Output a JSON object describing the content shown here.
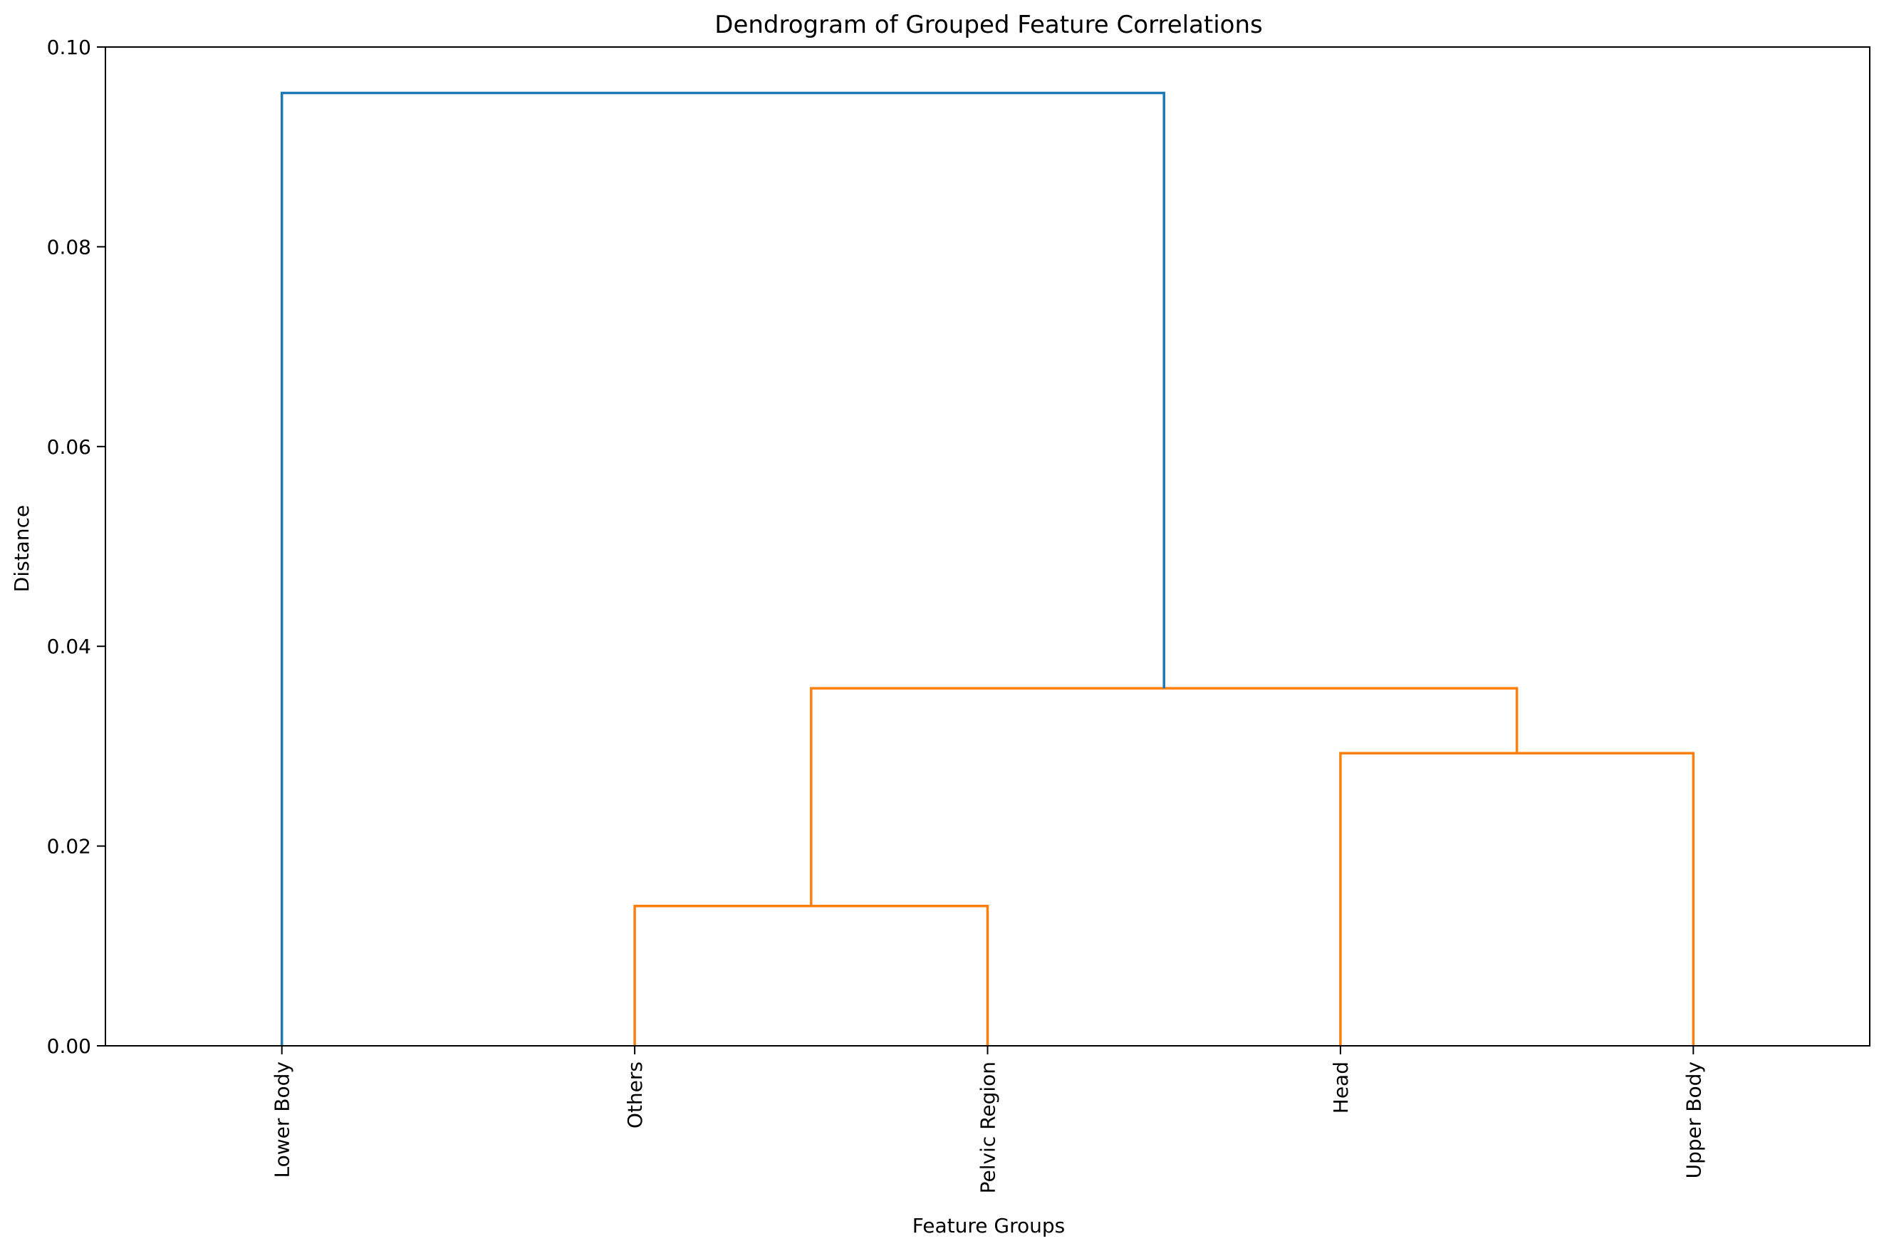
{
  "chart_data": {
    "type": "dendrogram",
    "title": "Dendrogram of Grouped Feature Correlations",
    "xlabel": "Feature Groups",
    "ylabel": "Distance",
    "ylim": [
      0,
      0.1
    ],
    "yticks": [
      "0.00",
      "0.02",
      "0.04",
      "0.06",
      "0.08",
      "0.10"
    ],
    "ytick_values": [
      0,
      0.02,
      0.04,
      0.06,
      0.08,
      0.1
    ],
    "leaves": [
      "Lower Body",
      "Others",
      "Pelvic Region",
      "Head",
      "Upper Body"
    ],
    "grid": false,
    "links": [
      {
        "left": "Others",
        "right": "Pelvic Region",
        "height": 0.014,
        "color": "#ff7f0e",
        "id": "c1"
      },
      {
        "left": "Head",
        "right": "Upper Body",
        "height": 0.0293,
        "color": "#ff7f0e",
        "id": "c2"
      },
      {
        "left": "c1",
        "right": "c2",
        "height": 0.0358,
        "color": "#ff7f0e",
        "id": "c3"
      },
      {
        "left": "Lower Body",
        "right": "c3",
        "height": 0.0954,
        "color": "#1f77b4",
        "id": "c4"
      }
    ]
  }
}
